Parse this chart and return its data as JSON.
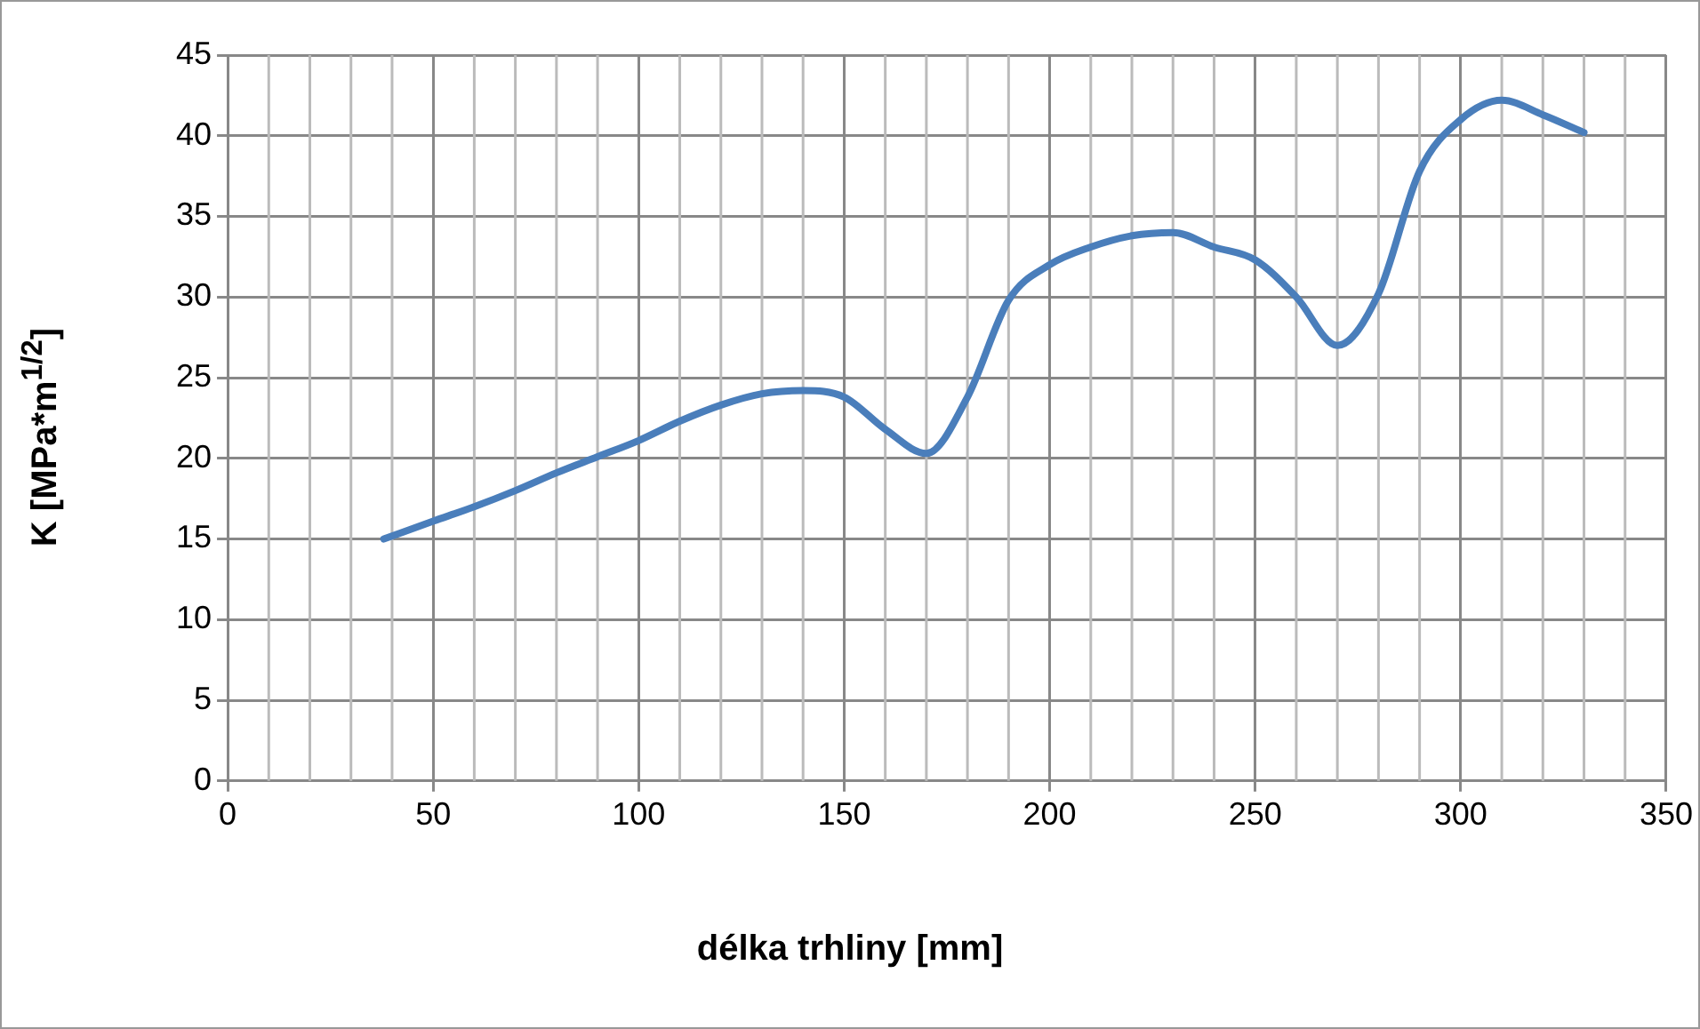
{
  "chart_data": {
    "type": "line",
    "xlabel": "délka trhliny [mm]",
    "ylabel": "K [MPa*m$^{1/2}$]",
    "x": [
      38,
      50,
      60,
      70,
      80,
      90,
      100,
      110,
      120,
      130,
      140,
      150,
      160,
      170,
      180,
      190,
      200,
      210,
      220,
      230,
      240,
      250,
      260,
      270,
      280,
      290,
      300,
      310,
      320,
      330
    ],
    "series": [
      {
        "color": "#4a7ebb",
        "values": [
          15,
          16.1,
          17,
          18,
          19.1,
          20.1,
          21.1,
          22.3,
          23.3,
          24,
          24.2,
          23.8,
          21.8,
          20.3,
          23.8,
          29.8,
          32,
          33.1,
          33.8,
          34,
          33.1,
          32.3,
          30,
          27,
          30.2,
          37.8,
          41,
          42.2,
          41.3,
          40.2
        ]
      }
    ],
    "xlim": [
      0,
      350
    ],
    "xticks": [
      0,
      50,
      100,
      150,
      200,
      250,
      300,
      350
    ],
    "ylim": [
      0,
      45
    ],
    "yticks": [
      0,
      5,
      10,
      15,
      20,
      25,
      30,
      35,
      40,
      45
    ],
    "grid": true,
    "legend": false,
    "marker": "none",
    "line_style": "solid"
  }
}
